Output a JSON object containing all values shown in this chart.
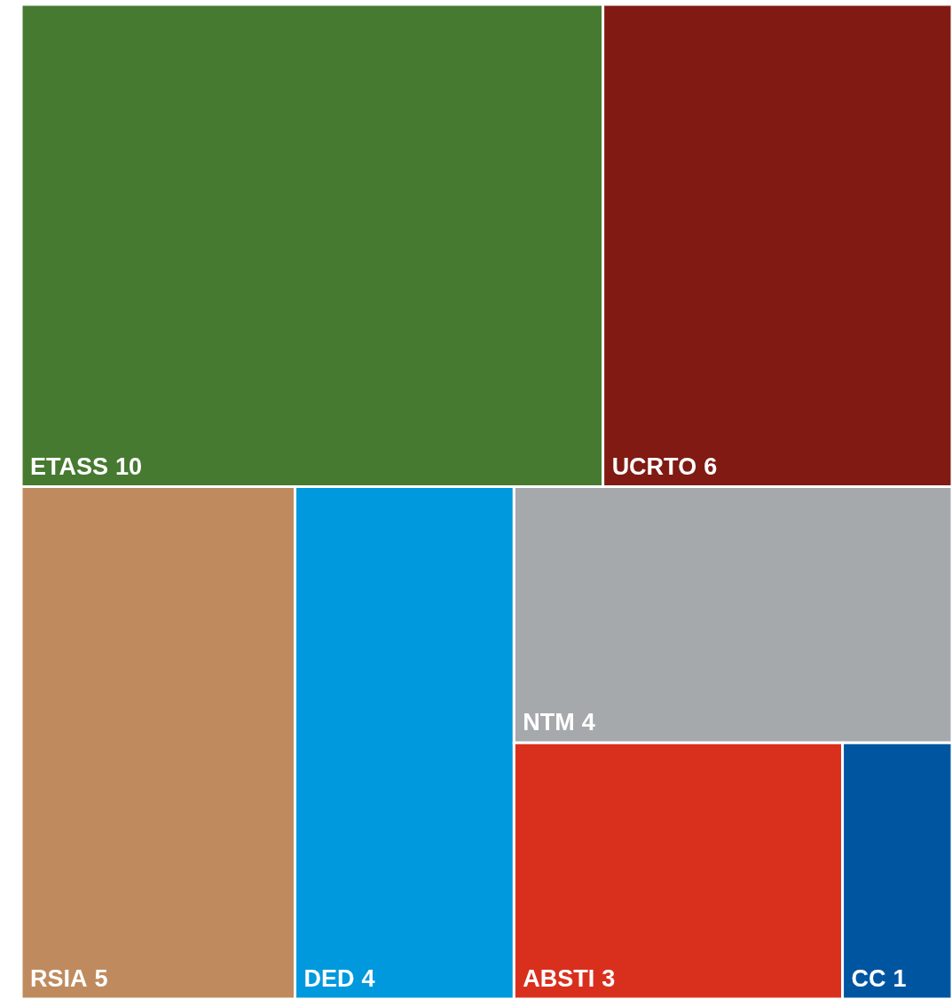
{
  "chart_data": {
    "type": "other",
    "categories": [
      "ETASS",
      "UCRTO",
      "RSIA",
      "DED",
      "NTM",
      "ABSTI",
      "CC"
    ],
    "values": [
      10,
      6,
      5,
      4,
      4,
      3,
      1
    ],
    "colors": [
      "#467a30",
      "#801a12",
      "#bf8b5e",
      "#0099dd",
      "#a6a9ab",
      "#d9301e",
      "#0055a0"
    ],
    "data_labels": true
  }
}
